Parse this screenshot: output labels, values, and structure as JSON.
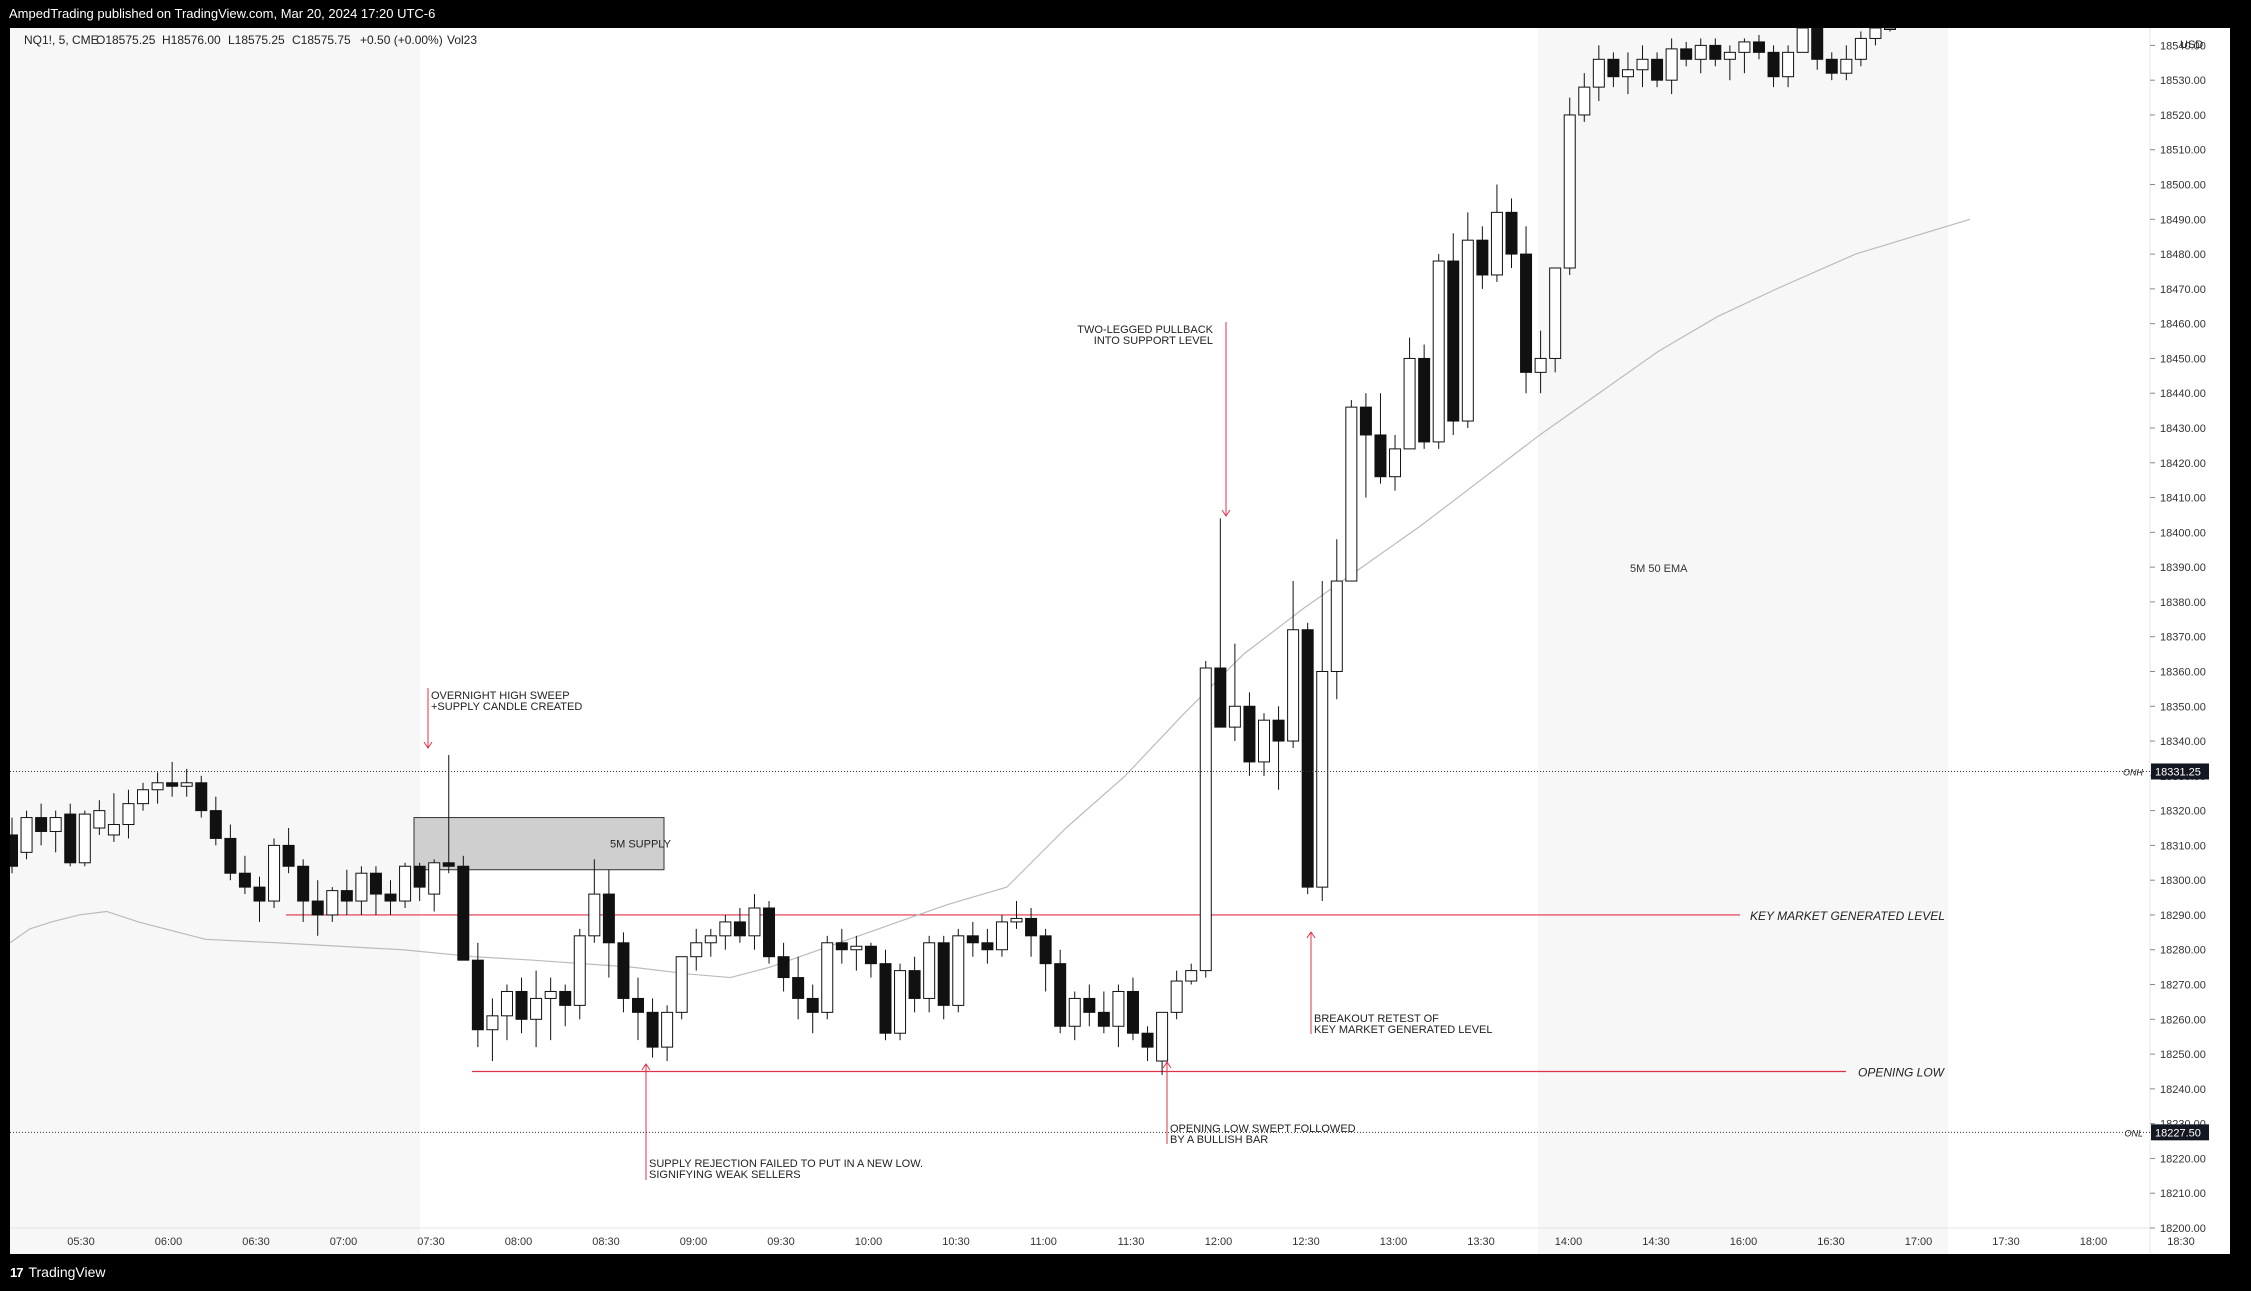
{
  "header": {
    "published": "AmpedTrading published on TradingView.com, Mar 20, 2024 17:20 UTC-6"
  },
  "legend": {
    "symbol": "NQ1!, 5, CME",
    "o": "O18575.25",
    "h": "H18576.00",
    "l": "L18575.25",
    "c": "C18575.75",
    "chg": "+0.50 (+0.00%)",
    "vol": "Vol23"
  },
  "footer": {
    "brand": "TradingView"
  },
  "chart_data": {
    "type": "candlestick",
    "currency": "USD",
    "y_range": [
      18200,
      18545
    ],
    "y_ticks": [
      18200,
      18210,
      18220,
      18230,
      18240,
      18250,
      18260,
      18270,
      18280,
      18290,
      18300,
      18310,
      18320,
      18330,
      18340,
      18350,
      18360,
      18370,
      18380,
      18390,
      18400,
      18410,
      18420,
      18430,
      18440,
      18450,
      18460,
      18470,
      18480,
      18490,
      18500,
      18510,
      18520,
      18530,
      18540
    ],
    "x_labels": [
      "05:30",
      "06:00",
      "06:30",
      "07:00",
      "07:30",
      "08:00",
      "08:30",
      "09:00",
      "09:30",
      "10:00",
      "10:30",
      "11:00",
      "11:30",
      "12:00",
      "12:30",
      "13:00",
      "13:30",
      "14:00",
      "14:30",
      "16:00",
      "16:30",
      "17:00",
      "17:30",
      "18:00",
      "18:30"
    ],
    "price_labels": [
      {
        "tag": "ONH",
        "value": "18331.25",
        "price": 18331.25
      },
      {
        "tag": "ONL",
        "value": "18227.50",
        "price": 18227.5
      }
    ],
    "levels": [
      {
        "label": "KEY MARKET GENERATED LEVEL",
        "price": 18290,
        "color": "#e0304a"
      },
      {
        "label": "OPENING LOW",
        "price": 18245,
        "color": "#e0304a"
      }
    ],
    "zone": {
      "label": "5M SUPPLY",
      "top": 18318,
      "bottom": 18303
    },
    "ema_label": "5M 50 EMA",
    "annotations": [
      {
        "lines": [
          "OVERNIGHT HIGH SWEEP",
          "+SUPPLY CANDLE CREATED"
        ]
      },
      {
        "lines": [
          "TWO-LEGGED PULLBACK",
          "INTO SUPPORT LEVEL"
        ]
      },
      {
        "lines": [
          "BREAKOUT RETEST OF",
          "KEY MARKET GENERATED LEVEL"
        ]
      },
      {
        "lines": [
          "OPENING LOW SWEPT FOLLOWED",
          "BY A BULLISH BAR"
        ]
      },
      {
        "lines": [
          "SUPPLY REJECTION FAILED TO PUT IN A NEW LOW.",
          "SIGNIFYING WEAK SELLERS"
        ]
      }
    ],
    "candles_ohlc": [
      [
        18313,
        18318,
        18302,
        18304
      ],
      [
        18308,
        18320,
        18306,
        18318
      ],
      [
        18318,
        18322,
        18310,
        18314
      ],
      [
        18314,
        18320,
        18308,
        18318
      ],
      [
        18319,
        18322,
        18304,
        18305
      ],
      [
        18305,
        18320,
        18304,
        18319
      ],
      [
        18315,
        18323,
        18313,
        18320
      ],
      [
        18313,
        18325,
        18311,
        18316
      ],
      [
        18316,
        18326,
        18312,
        18322
      ],
      [
        18322,
        18328,
        18320,
        18326
      ],
      [
        18326,
        18331,
        18322,
        18328
      ],
      [
        18328,
        18334,
        18324,
        18327
      ],
      [
        18327,
        18332,
        18324,
        18328
      ],
      [
        18328,
        18330,
        18318,
        18320
      ],
      [
        18320,
        18324,
        18310,
        18312
      ],
      [
        18312,
        18316,
        18300,
        18302
      ],
      [
        18302,
        18307,
        18296,
        18298
      ],
      [
        18298,
        18301,
        18288,
        18294
      ],
      [
        18294,
        18312,
        18292,
        18310
      ],
      [
        18310,
        18315,
        18302,
        18304
      ],
      [
        18304,
        18306,
        18288,
        18294
      ],
      [
        18294,
        18300,
        18284,
        18290
      ],
      [
        18290,
        18298,
        18288,
        18297
      ],
      [
        18297,
        18303,
        18290,
        18294
      ],
      [
        18294,
        18304,
        18290,
        18302
      ],
      [
        18302,
        18304,
        18290,
        18296
      ],
      [
        18296,
        18300,
        18290,
        18294
      ],
      [
        18294,
        18305,
        18292,
        18304
      ],
      [
        18304,
        18305,
        18294,
        18298
      ],
      [
        18296,
        18306,
        18291,
        18305
      ],
      [
        18305,
        18336,
        18302,
        18304
      ],
      [
        18304,
        18307,
        18280,
        18277
      ],
      [
        18277,
        18282,
        18252,
        18257
      ],
      [
        18257,
        18266,
        18248,
        18261
      ],
      [
        18261,
        18270,
        18254,
        18268
      ],
      [
        18268,
        18272,
        18256,
        18260
      ],
      [
        18260,
        18274,
        18252,
        18266
      ],
      [
        18266,
        18272,
        18254,
        18268
      ],
      [
        18268,
        18270,
        18258,
        18264
      ],
      [
        18264,
        18286,
        18260,
        18284
      ],
      [
        18284,
        18306,
        18282,
        18296
      ],
      [
        18296,
        18303,
        18272,
        18282
      ],
      [
        18282,
        18285,
        18262,
        18266
      ],
      [
        18266,
        18272,
        18254,
        18262
      ],
      [
        18262,
        18266,
        18249,
        18252
      ],
      [
        18252,
        18264,
        18248,
        18262
      ],
      [
        18262,
        18276,
        18260,
        18278
      ],
      [
        18278,
        18286,
        18274,
        18282
      ],
      [
        18282,
        18286,
        18278,
        18284
      ],
      [
        18284,
        18290,
        18280,
        18288
      ],
      [
        18288,
        18292,
        18282,
        18284
      ],
      [
        18284,
        18296,
        18280,
        18292
      ],
      [
        18292,
        18294,
        18276,
        18278
      ],
      [
        18278,
        18282,
        18268,
        18272
      ],
      [
        18272,
        18278,
        18260,
        18266
      ],
      [
        18266,
        18270,
        18256,
        18262
      ],
      [
        18262,
        18284,
        18260,
        18282
      ],
      [
        18282,
        18286,
        18276,
        18280
      ],
      [
        18280,
        18284,
        18274,
        18281
      ],
      [
        18281,
        18282,
        18272,
        18276
      ],
      [
        18276,
        18280,
        18254,
        18256
      ],
      [
        18256,
        18276,
        18254,
        18274
      ],
      [
        18274,
        18278,
        18262,
        18266
      ],
      [
        18266,
        18284,
        18262,
        18282
      ],
      [
        18282,
        18284,
        18260,
        18264
      ],
      [
        18264,
        18286,
        18262,
        18284
      ],
      [
        18284,
        18288,
        18278,
        18282
      ],
      [
        18282,
        18286,
        18276,
        18280
      ],
      [
        18280,
        18290,
        18278,
        18288
      ],
      [
        18288,
        18294,
        18286,
        18289
      ],
      [
        18289,
        18292,
        18278,
        18284
      ],
      [
        18284,
        18286,
        18268,
        18276
      ],
      [
        18276,
        18280,
        18256,
        18258
      ],
      [
        18258,
        18268,
        18254,
        18266
      ],
      [
        18266,
        18270,
        18258,
        18262
      ],
      [
        18262,
        18268,
        18256,
        18258
      ],
      [
        18258,
        18270,
        18252,
        18268
      ],
      [
        18268,
        18272,
        18254,
        18256
      ],
      [
        18256,
        18258,
        18248,
        18252
      ],
      [
        18248,
        18260,
        18244,
        18262
      ],
      [
        18262,
        18274,
        18260,
        18271
      ],
      [
        18271,
        18276,
        18270,
        18274
      ],
      [
        18274,
        18363,
        18272,
        18361
      ],
      [
        18361,
        18404,
        18344,
        18344
      ],
      [
        18344,
        18368,
        18340,
        18350
      ],
      [
        18350,
        18354,
        18330,
        18334
      ],
      [
        18334,
        18348,
        18330,
        18346
      ],
      [
        18346,
        18350,
        18326,
        18340
      ],
      [
        18340,
        18386,
        18338,
        18372
      ],
      [
        18372,
        18374,
        18296,
        18298
      ],
      [
        18298,
        18386,
        18294,
        18360
      ],
      [
        18360,
        18398,
        18352,
        18386
      ],
      [
        18386,
        18438,
        18386,
        18436
      ],
      [
        18436,
        18440,
        18410,
        18428
      ],
      [
        18428,
        18440,
        18414,
        18416
      ],
      [
        18416,
        18428,
        18412,
        18424
      ],
      [
        18424,
        18456,
        18424,
        18450
      ],
      [
        18450,
        18454,
        18424,
        18426
      ],
      [
        18426,
        18480,
        18424,
        18478
      ],
      [
        18478,
        18486,
        18428,
        18432
      ],
      [
        18432,
        18492,
        18430,
        18484
      ],
      [
        18484,
        18488,
        18470,
        18474
      ],
      [
        18474,
        18500,
        18472,
        18492
      ],
      [
        18492,
        18496,
        18476,
        18480
      ],
      [
        18480,
        18488,
        18440,
        18446
      ],
      [
        18446,
        18458,
        18440,
        18450
      ],
      [
        18450,
        18472,
        18446,
        18476
      ],
      [
        18476,
        18525,
        18474,
        18520
      ],
      [
        18520,
        18532,
        18518,
        18528
      ],
      [
        18528,
        18540,
        18524,
        18536
      ],
      [
        18536,
        18538,
        18528,
        18531
      ],
      [
        18531,
        18538,
        18526,
        18533
      ],
      [
        18533,
        18540,
        18528,
        18536
      ],
      [
        18536,
        18538,
        18528,
        18530
      ],
      [
        18530,
        18542,
        18526,
        18539
      ],
      [
        18539,
        18541,
        18534,
        18536
      ],
      [
        18536,
        18542,
        18532,
        18540
      ],
      [
        18540,
        18542,
        18534,
        18536
      ],
      [
        18536,
        18540,
        18530,
        18538
      ],
      [
        18538,
        18542,
        18532,
        18541
      ],
      [
        18541,
        18543,
        18536,
        18538
      ],
      [
        18538,
        18540,
        18528,
        18531
      ],
      [
        18531,
        18540,
        18528,
        18538
      ],
      [
        18538,
        18546,
        18538,
        18545
      ],
      [
        18545,
        18546,
        18533,
        18536
      ],
      [
        18536,
        18538,
        18530,
        18532
      ],
      [
        18532,
        18540,
        18530,
        18536
      ],
      [
        18536,
        18544,
        18534,
        18542
      ],
      [
        18542,
        18546,
        18540,
        18545
      ],
      [
        18545,
        18546,
        18544,
        18545
      ]
    ],
    "ema_50": [
      [
        18265,
        18282
      ],
      [
        18275,
        18286
      ],
      [
        18286,
        18288
      ],
      [
        18300,
        18290
      ],
      [
        18314,
        18291
      ],
      [
        18330,
        18288
      ],
      [
        18364,
        18283
      ],
      [
        18400,
        18282
      ],
      [
        18464,
        18280
      ],
      [
        18500,
        18278
      ],
      [
        18530,
        18277
      ],
      [
        18580,
        18275
      ],
      [
        18609,
        18273
      ],
      [
        18630,
        18272
      ],
      [
        18650,
        18275
      ],
      [
        18680,
        18281
      ],
      [
        18710,
        18287
      ],
      [
        18740,
        18293
      ],
      [
        18770,
        18298
      ],
      [
        18800,
        18315
      ],
      [
        18830,
        18330
      ],
      [
        18860,
        18348
      ],
      [
        18890,
        18365
      ],
      [
        18920,
        18378
      ],
      [
        18950,
        18390
      ],
      [
        18980,
        18402
      ],
      [
        19010,
        18415
      ],
      [
        19040,
        18428
      ],
      [
        19070,
        18440
      ],
      [
        19100,
        18452
      ],
      [
        19130,
        18462
      ],
      [
        19160,
        18470
      ],
      [
        19200,
        18480
      ],
      [
        19258,
        18490
      ]
    ]
  }
}
